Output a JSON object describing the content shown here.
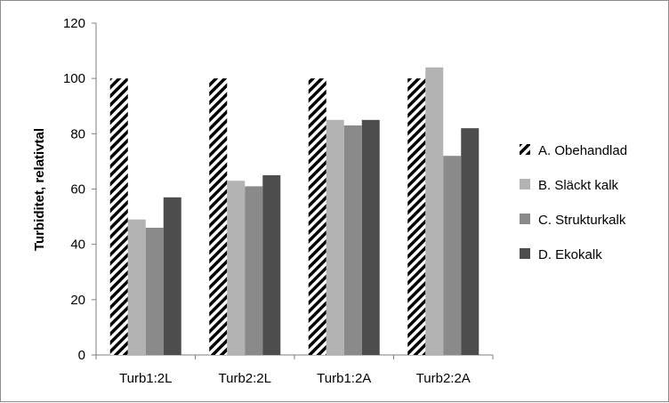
{
  "chart_data": {
    "type": "bar",
    "title": "",
    "xlabel": "",
    "ylabel": "Turbiditet, relativtal",
    "ylim": [
      0,
      120
    ],
    "yticks": [
      0,
      20,
      40,
      60,
      80,
      100,
      120
    ],
    "grid": false,
    "legend_position": "right",
    "categories": [
      "Turb1:2L",
      "Turb2:2L",
      "Turb1:2A",
      "Turb2:2A"
    ],
    "series": [
      {
        "name": "A. Obehandlad",
        "values": [
          100,
          100,
          100,
          100
        ],
        "color": "#000000",
        "pattern": "diagonal-hatch"
      },
      {
        "name": "B. Släckt kalk",
        "values": [
          49,
          63,
          85,
          104
        ],
        "color": "#b3b3b3",
        "pattern": "solid"
      },
      {
        "name": "C. Strukturkalk",
        "values": [
          46,
          61,
          83,
          72
        ],
        "color": "#8a8a8a",
        "pattern": "solid"
      },
      {
        "name": "D. Ekokalk",
        "values": [
          57,
          65,
          85,
          82
        ],
        "color": "#4d4d4d",
        "pattern": "solid"
      }
    ]
  }
}
